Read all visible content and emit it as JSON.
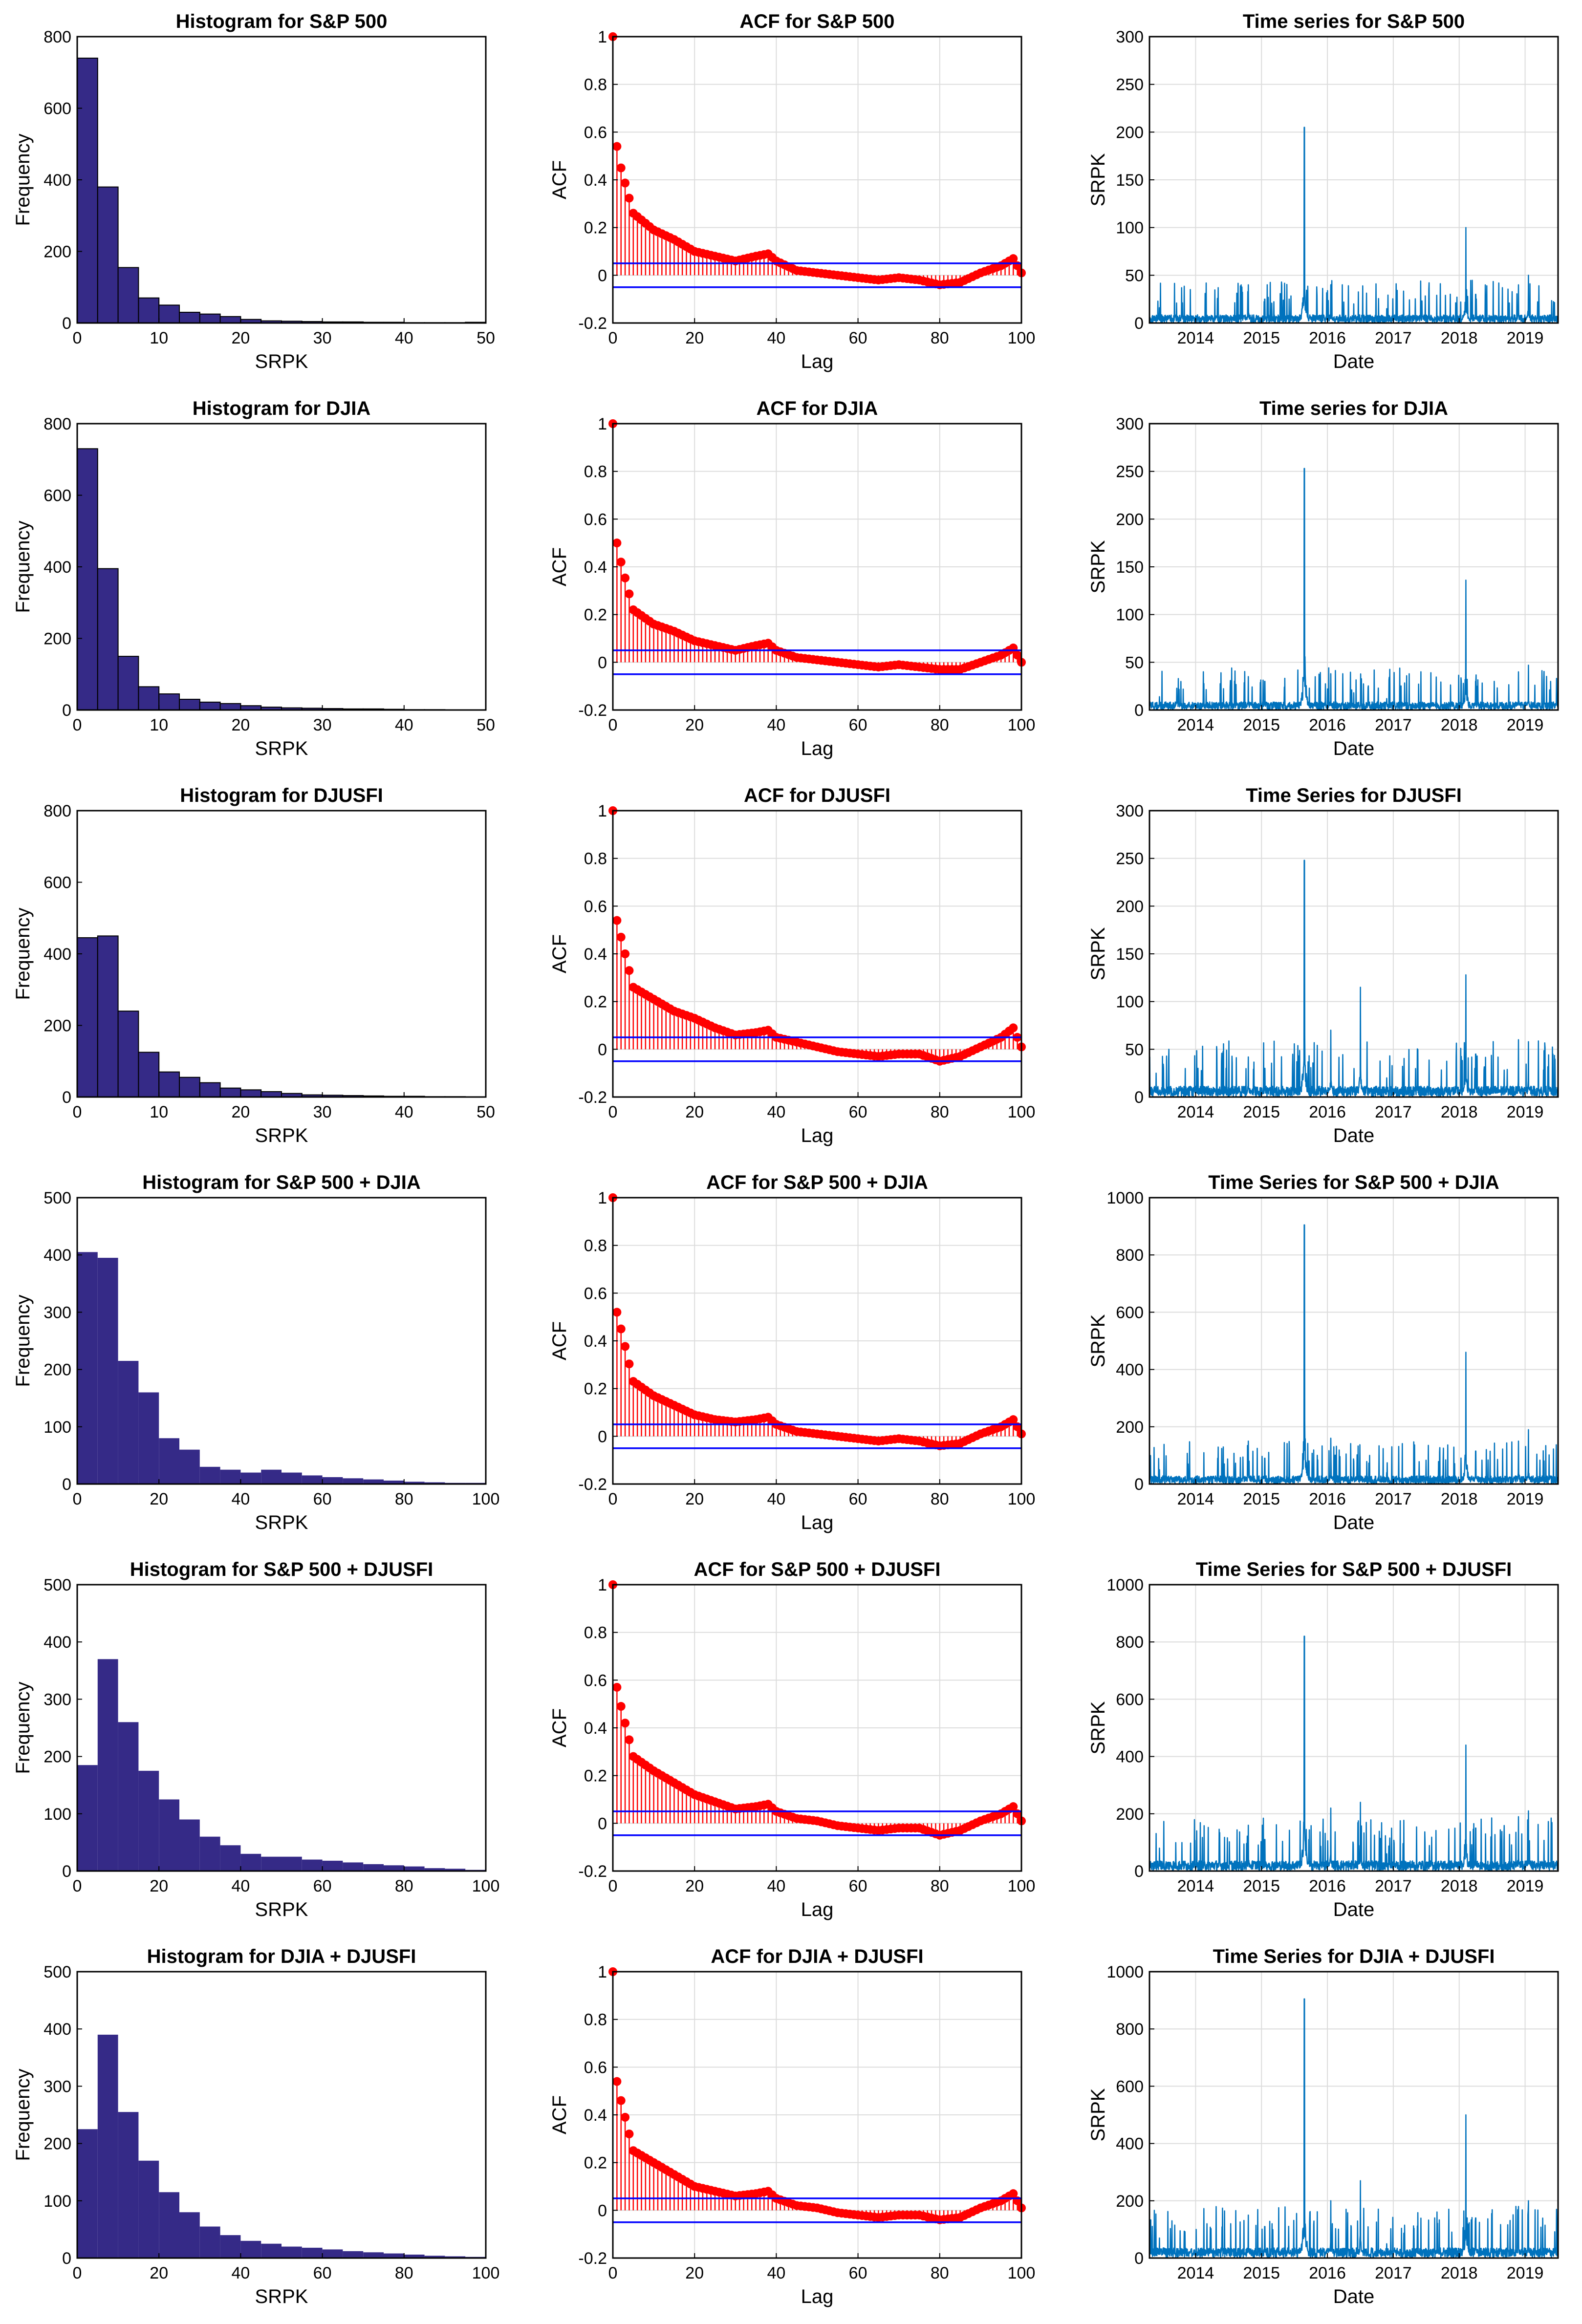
{
  "colors": {
    "histogram_fill": "#352a87",
    "acf_line": "#ff0000",
    "acf_bounds": "#0000ff",
    "timeseries_line": "#0072bd",
    "grid": "#dcdcdc"
  },
  "chart_data": [
    {
      "type": "bar",
      "kind": "hist",
      "title": "Histogram for S&P 500",
      "xlabel": "SRPK",
      "ylabel": "Frequency",
      "xlim": [
        0,
        50
      ],
      "ylim": [
        0,
        800
      ],
      "xticks": [
        0,
        10,
        20,
        30,
        40,
        50
      ],
      "yticks": [
        0,
        200,
        400,
        600,
        800
      ],
      "bin_width": 2.5,
      "edges": true,
      "values": [
        740,
        380,
        155,
        70,
        50,
        30,
        25,
        18,
        10,
        6,
        5,
        4,
        3,
        3,
        2,
        2,
        1,
        1,
        1,
        2
      ]
    },
    {
      "type": "line",
      "kind": "acf",
      "title": "ACF for S&P 500",
      "xlabel": "Lag",
      "ylabel": "ACF",
      "xlim": [
        0,
        100
      ],
      "ylim": [
        -0.2,
        1
      ],
      "xticks": [
        0,
        20,
        40,
        60,
        80,
        100
      ],
      "yticks": [
        -0.2,
        0,
        0.2,
        0.4,
        0.6,
        0.8,
        1
      ],
      "bounds": [
        0.05,
        -0.05
      ],
      "lags": [
        0,
        1,
        2,
        5,
        10,
        15,
        20,
        25,
        30,
        35,
        38,
        40,
        45,
        50,
        55,
        60,
        65,
        70,
        75,
        80,
        85,
        90,
        95,
        98,
        100
      ],
      "values": [
        1,
        0.54,
        0.45,
        0.26,
        0.19,
        0.15,
        0.1,
        0.08,
        0.06,
        0.08,
        0.09,
        0.06,
        0.02,
        0.01,
        0,
        -0.01,
        -0.02,
        -0.01,
        -0.02,
        -0.04,
        -0.03,
        0.01,
        0.04,
        0.07,
        0.01
      ]
    },
    {
      "type": "line",
      "kind": "ts",
      "title": "Time series for S&P 500",
      "xlabel": "Date",
      "ylabel": "SRPK",
      "xlim": [
        2013.3,
        2019.5
      ],
      "ylim": [
        0,
        300
      ],
      "xticks": [
        2014,
        2015,
        2016,
        2017,
        2018,
        2019
      ],
      "yticks": [
        0,
        50,
        100,
        150,
        200,
        250,
        300
      ],
      "baseline": 6,
      "spikes": [
        [
          2013.45,
          16
        ],
        [
          2014.8,
          40
        ],
        [
          2015.05,
          25
        ],
        [
          2015.65,
          205
        ],
        [
          2016.05,
          40
        ],
        [
          2016.4,
          20
        ],
        [
          2016.9,
          15
        ],
        [
          2018.1,
          100
        ],
        [
          2018.25,
          30
        ],
        [
          2018.9,
          40
        ],
        [
          2019.05,
          50
        ]
      ]
    },
    {
      "type": "bar",
      "kind": "hist",
      "title": "Histogram for DJIA",
      "xlabel": "SRPK",
      "ylabel": "Frequency",
      "xlim": [
        0,
        50
      ],
      "ylim": [
        0,
        800
      ],
      "xticks": [
        0,
        10,
        20,
        30,
        40,
        50
      ],
      "yticks": [
        0,
        200,
        400,
        600,
        800
      ],
      "bin_width": 2.5,
      "edges": true,
      "values": [
        730,
        395,
        150,
        65,
        45,
        30,
        22,
        18,
        12,
        8,
        6,
        5,
        4,
        3,
        3,
        2,
        1,
        1,
        0,
        0
      ]
    },
    {
      "type": "line",
      "kind": "acf",
      "title": "ACF for DJIA",
      "xlabel": "Lag",
      "ylabel": "ACF",
      "xlim": [
        0,
        100
      ],
      "ylim": [
        -0.2,
        1
      ],
      "xticks": [
        0,
        20,
        40,
        60,
        80,
        100
      ],
      "yticks": [
        -0.2,
        0,
        0.2,
        0.4,
        0.6,
        0.8,
        1
      ],
      "bounds": [
        0.05,
        -0.05
      ],
      "lags": [
        0,
        1,
        2,
        5,
        10,
        15,
        20,
        25,
        30,
        35,
        38,
        40,
        45,
        50,
        55,
        60,
        65,
        70,
        75,
        80,
        85,
        90,
        95,
        98,
        100
      ],
      "values": [
        1,
        0.5,
        0.42,
        0.22,
        0.16,
        0.13,
        0.09,
        0.07,
        0.05,
        0.07,
        0.08,
        0.05,
        0.02,
        0.01,
        0,
        -0.01,
        -0.02,
        -0.01,
        -0.02,
        -0.03,
        -0.03,
        0,
        0.03,
        0.06,
        0
      ]
    },
    {
      "type": "line",
      "kind": "ts",
      "title": "Time series for DJIA",
      "xlabel": "Date",
      "ylabel": "SRPK",
      "xlim": [
        2013.3,
        2019.5
      ],
      "ylim": [
        0,
        300
      ],
      "xticks": [
        2014,
        2015,
        2016,
        2017,
        2018,
        2019
      ],
      "yticks": [
        0,
        50,
        100,
        150,
        200,
        250,
        300
      ],
      "baseline": 6,
      "spikes": [
        [
          2013.45,
          14
        ],
        [
          2014.8,
          35
        ],
        [
          2015.05,
          30
        ],
        [
          2015.65,
          253
        ],
        [
          2016.05,
          38
        ],
        [
          2016.4,
          18
        ],
        [
          2016.9,
          12
        ],
        [
          2018.1,
          136
        ],
        [
          2018.25,
          30
        ],
        [
          2018.9,
          40
        ],
        [
          2019.05,
          47
        ]
      ]
    },
    {
      "type": "bar",
      "kind": "hist",
      "title": "Histogram for DJUSFI",
      "xlabel": "SRPK",
      "ylabel": "Frequency",
      "xlim": [
        0,
        50
      ],
      "ylim": [
        0,
        800
      ],
      "xticks": [
        0,
        10,
        20,
        30,
        40,
        50
      ],
      "yticks": [
        0,
        200,
        400,
        600,
        800
      ],
      "bin_width": 2.5,
      "edges": true,
      "values": [
        445,
        450,
        240,
        125,
        70,
        55,
        40,
        25,
        20,
        15,
        10,
        6,
        5,
        4,
        3,
        2,
        2,
        1,
        1,
        0
      ]
    },
    {
      "type": "line",
      "kind": "acf",
      "title": "ACF for DJUSFI",
      "xlabel": "Lag",
      "ylabel": "ACF",
      "xlim": [
        0,
        100
      ],
      "ylim": [
        -0.2,
        1
      ],
      "xticks": [
        0,
        20,
        40,
        60,
        80,
        100
      ],
      "yticks": [
        -0.2,
        0,
        0.2,
        0.4,
        0.6,
        0.8,
        1
      ],
      "bounds": [
        0.05,
        -0.05
      ],
      "lags": [
        0,
        1,
        2,
        5,
        10,
        15,
        20,
        25,
        30,
        35,
        38,
        40,
        45,
        50,
        55,
        60,
        65,
        70,
        75,
        80,
        85,
        90,
        95,
        98,
        100
      ],
      "values": [
        1,
        0.54,
        0.47,
        0.26,
        0.21,
        0.16,
        0.13,
        0.09,
        0.06,
        0.07,
        0.08,
        0.05,
        0.03,
        0.01,
        -0.01,
        -0.02,
        -0.03,
        -0.02,
        -0.02,
        -0.05,
        -0.03,
        0.01,
        0.05,
        0.09,
        0.01
      ]
    },
    {
      "type": "line",
      "kind": "ts",
      "title": "Time Series for DJUSFI",
      "xlabel": "Date",
      "ylabel": "SRPK",
      "xlim": [
        2013.3,
        2019.5
      ],
      "ylim": [
        0,
        300
      ],
      "xticks": [
        2014,
        2015,
        2016,
        2017,
        2018,
        2019
      ],
      "yticks": [
        0,
        50,
        100,
        150,
        200,
        250,
        300
      ],
      "baseline": 8,
      "spikes": [
        [
          2013.4,
          25
        ],
        [
          2014.8,
          42
        ],
        [
          2015.05,
          30
        ],
        [
          2015.65,
          248
        ],
        [
          2016.05,
          70
        ],
        [
          2016.5,
          115
        ],
        [
          2016.9,
          20
        ],
        [
          2018.1,
          128
        ],
        [
          2018.25,
          45
        ],
        [
          2018.9,
          60
        ],
        [
          2019.05,
          58
        ]
      ]
    },
    {
      "type": "bar",
      "kind": "hist",
      "title": "Histogram for S&P 500 + DJIA",
      "xlabel": "SRPK",
      "ylabel": "Frequency",
      "xlim": [
        0,
        100
      ],
      "ylim": [
        0,
        500
      ],
      "xticks": [
        0,
        20,
        40,
        60,
        80,
        100
      ],
      "yticks": [
        0,
        100,
        200,
        300,
        400,
        500
      ],
      "bin_width": 5,
      "edges": false,
      "values": [
        405,
        395,
        215,
        160,
        80,
        60,
        30,
        25,
        20,
        25,
        20,
        15,
        12,
        10,
        8,
        6,
        4,
        3,
        2,
        2
      ]
    },
    {
      "type": "line",
      "kind": "acf",
      "title": "ACF for S&P 500 + DJIA",
      "xlabel": "Lag",
      "ylabel": "ACF",
      "xlim": [
        0,
        100
      ],
      "ylim": [
        -0.2,
        1
      ],
      "xticks": [
        0,
        20,
        40,
        60,
        80,
        100
      ],
      "yticks": [
        -0.2,
        0,
        0.2,
        0.4,
        0.6,
        0.8,
        1
      ],
      "bounds": [
        0.05,
        -0.05
      ],
      "lags": [
        0,
        1,
        2,
        5,
        10,
        15,
        20,
        25,
        30,
        35,
        38,
        40,
        45,
        50,
        55,
        60,
        65,
        70,
        75,
        80,
        85,
        90,
        95,
        98,
        100
      ],
      "values": [
        1,
        0.52,
        0.45,
        0.23,
        0.17,
        0.13,
        0.09,
        0.07,
        0.06,
        0.07,
        0.08,
        0.05,
        0.02,
        0.01,
        0,
        -0.01,
        -0.02,
        -0.01,
        -0.02,
        -0.04,
        -0.03,
        0.01,
        0.04,
        0.07,
        0.01
      ]
    },
    {
      "type": "line",
      "kind": "ts",
      "title": "Time Series for S&P 500 + DJIA",
      "xlabel": "Date",
      "ylabel": "SRPK",
      "xlim": [
        2013.3,
        2019.5
      ],
      "ylim": [
        0,
        1000
      ],
      "xticks": [
        2014,
        2015,
        2016,
        2017,
        2018,
        2019
      ],
      "yticks": [
        0,
        200,
        400,
        600,
        800,
        1000
      ],
      "baseline": 20,
      "spikes": [
        [
          2013.45,
          50
        ],
        [
          2014.8,
          150
        ],
        [
          2015.05,
          90
        ],
        [
          2015.65,
          905
        ],
        [
          2016.05,
          160
        ],
        [
          2016.4,
          80
        ],
        [
          2016.9,
          40
        ],
        [
          2018.1,
          460
        ],
        [
          2018.25,
          115
        ],
        [
          2018.9,
          150
        ],
        [
          2019.05,
          190
        ]
      ]
    },
    {
      "type": "bar",
      "kind": "hist",
      "title": "Histogram for S&P 500 + DJUSFI",
      "xlabel": "SRPK",
      "ylabel": "Frequency",
      "xlim": [
        0,
        100
      ],
      "ylim": [
        0,
        500
      ],
      "xticks": [
        0,
        20,
        40,
        60,
        80,
        100
      ],
      "yticks": [
        0,
        100,
        200,
        300,
        400,
        500
      ],
      "bin_width": 5,
      "edges": false,
      "values": [
        185,
        370,
        260,
        175,
        125,
        90,
        60,
        45,
        30,
        25,
        25,
        20,
        18,
        15,
        12,
        10,
        8,
        5,
        4,
        2
      ]
    },
    {
      "type": "line",
      "kind": "acf",
      "title": "ACF for S&P 500 + DJUSFI",
      "xlabel": "Lag",
      "ylabel": "ACF",
      "xlim": [
        0,
        100
      ],
      "ylim": [
        -0.2,
        1
      ],
      "xticks": [
        0,
        20,
        40,
        60,
        80,
        100
      ],
      "yticks": [
        -0.2,
        0,
        0.2,
        0.4,
        0.6,
        0.8,
        1
      ],
      "bounds": [
        0.05,
        -0.05
      ],
      "lags": [
        0,
        1,
        2,
        5,
        10,
        15,
        20,
        25,
        30,
        35,
        38,
        40,
        45,
        50,
        55,
        60,
        65,
        70,
        75,
        80,
        85,
        90,
        95,
        98,
        100
      ],
      "values": [
        1,
        0.57,
        0.49,
        0.28,
        0.22,
        0.17,
        0.12,
        0.09,
        0.06,
        0.07,
        0.08,
        0.05,
        0.02,
        0.01,
        -0.01,
        -0.02,
        -0.03,
        -0.02,
        -0.02,
        -0.05,
        -0.03,
        0.01,
        0.04,
        0.07,
        0.01
      ]
    },
    {
      "type": "line",
      "kind": "ts",
      "title": "Time Series for S&P 500 + DJUSFI",
      "xlabel": "Date",
      "ylabel": "SRPK",
      "xlim": [
        2013.3,
        2019.5
      ],
      "ylim": [
        0,
        1000
      ],
      "xticks": [
        2014,
        2015,
        2016,
        2017,
        2018,
        2019
      ],
      "yticks": [
        0,
        200,
        400,
        600,
        800,
        1000
      ],
      "baseline": 25,
      "spikes": [
        [
          2013.45,
          80
        ],
        [
          2014.8,
          160
        ],
        [
          2015.05,
          110
        ],
        [
          2015.65,
          820
        ],
        [
          2016.05,
          220
        ],
        [
          2016.5,
          240
        ],
        [
          2016.9,
          60
        ],
        [
          2018.1,
          440
        ],
        [
          2018.25,
          150
        ],
        [
          2018.9,
          190
        ],
        [
          2019.05,
          210
        ]
      ]
    },
    {
      "type": "bar",
      "kind": "hist",
      "title": "Histogram for DJIA + DJUSFI",
      "xlabel": "SRPK",
      "ylabel": "Frequency",
      "xlim": [
        0,
        100
      ],
      "ylim": [
        0,
        500
      ],
      "xticks": [
        0,
        20,
        40,
        60,
        80,
        100
      ],
      "yticks": [
        0,
        100,
        200,
        300,
        400,
        500
      ],
      "bin_width": 5,
      "edges": false,
      "values": [
        225,
        390,
        255,
        170,
        115,
        80,
        55,
        40,
        30,
        25,
        20,
        18,
        15,
        12,
        10,
        8,
        6,
        4,
        3,
        2
      ]
    },
    {
      "type": "line",
      "kind": "acf",
      "title": "ACF for DJIA + DJUSFI",
      "xlabel": "Lag",
      "ylabel": "ACF",
      "xlim": [
        0,
        100
      ],
      "ylim": [
        -0.2,
        1
      ],
      "xticks": [
        0,
        20,
        40,
        60,
        80,
        100
      ],
      "yticks": [
        -0.2,
        0,
        0.2,
        0.4,
        0.6,
        0.8,
        1
      ],
      "bounds": [
        0.05,
        -0.05
      ],
      "lags": [
        0,
        1,
        2,
        5,
        10,
        15,
        20,
        25,
        30,
        35,
        38,
        40,
        45,
        50,
        55,
        60,
        65,
        70,
        75,
        80,
        85,
        90,
        95,
        98,
        100
      ],
      "values": [
        1,
        0.54,
        0.46,
        0.25,
        0.2,
        0.15,
        0.1,
        0.08,
        0.06,
        0.07,
        0.08,
        0.05,
        0.02,
        0.01,
        -0.01,
        -0.02,
        -0.03,
        -0.02,
        -0.02,
        -0.04,
        -0.03,
        0.01,
        0.04,
        0.07,
        0.01
      ]
    },
    {
      "type": "line",
      "kind": "ts",
      "title": "Time Series for DJIA + DJUSFI",
      "xlabel": "Date",
      "ylabel": "SRPK",
      "xlim": [
        2013.3,
        2019.5
      ],
      "ylim": [
        0,
        1000
      ],
      "xticks": [
        2014,
        2015,
        2016,
        2017,
        2018,
        2019
      ],
      "yticks": [
        0,
        200,
        400,
        600,
        800,
        1000
      ],
      "baseline": 25,
      "spikes": [
        [
          2013.45,
          70
        ],
        [
          2014.8,
          150
        ],
        [
          2015.05,
          110
        ],
        [
          2015.65,
          905
        ],
        [
          2016.05,
          200
        ],
        [
          2016.5,
          270
        ],
        [
          2016.9,
          50
        ],
        [
          2018.1,
          500
        ],
        [
          2018.25,
          140
        ],
        [
          2018.9,
          180
        ],
        [
          2019.05,
          200
        ]
      ]
    }
  ]
}
